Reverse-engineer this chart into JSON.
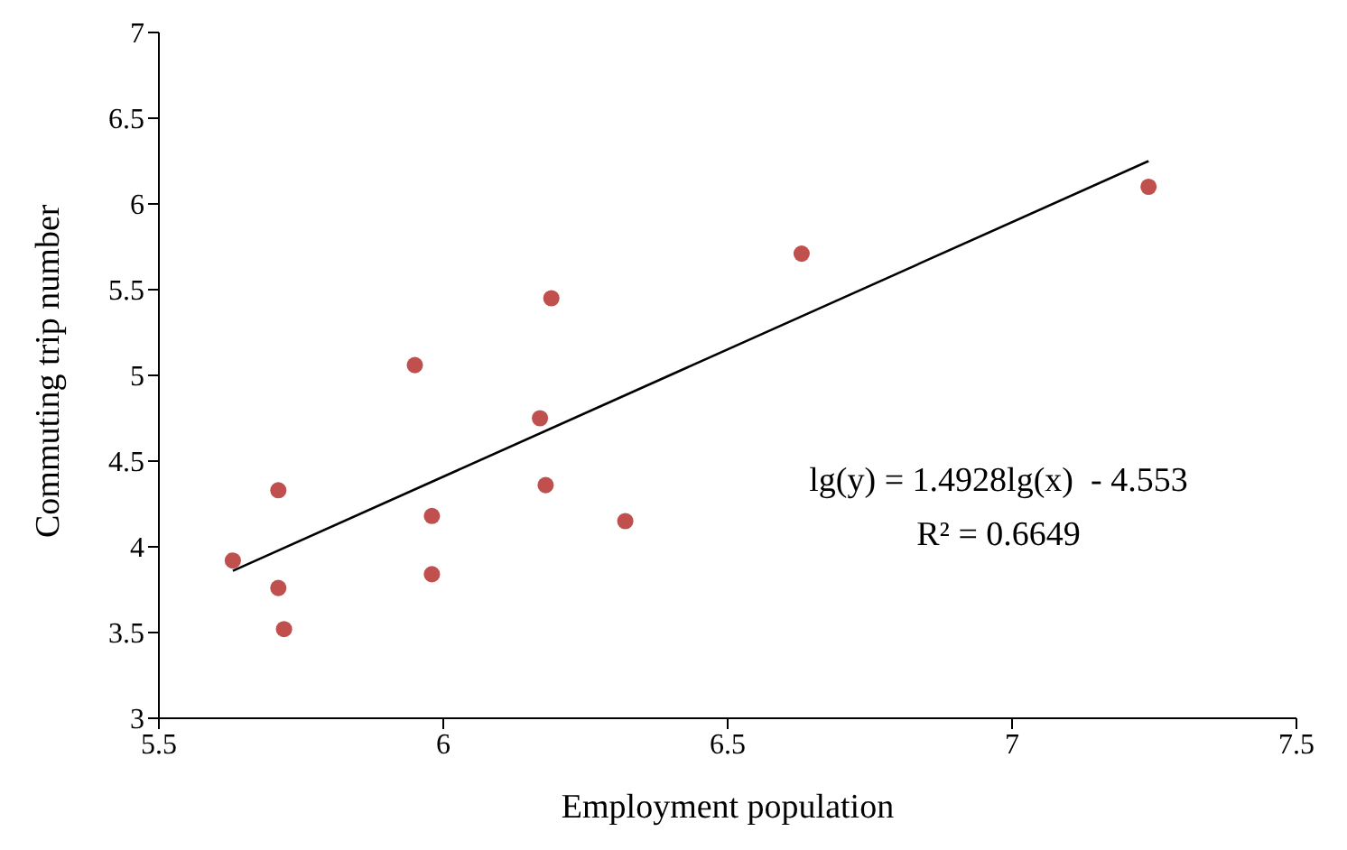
{
  "chart_data": {
    "type": "scatter",
    "xlabel": "Employment population",
    "ylabel": "Commuting  trip number",
    "xlim": [
      5.5,
      7.5
    ],
    "xticks": [
      5.5,
      6,
      6.5,
      7,
      7.5
    ],
    "ylim": [
      3,
      7
    ],
    "yticks": [
      3,
      3.5,
      4,
      4.5,
      5,
      5.5,
      6,
      6.5,
      7
    ],
    "grid": false,
    "series": [
      {
        "marker": "circle",
        "color": "#c0504d",
        "x": [
          5.63,
          5.71,
          5.71,
          5.72,
          5.95,
          5.98,
          5.98,
          6.17,
          6.18,
          6.19,
          6.32,
          6.63,
          7.24
        ],
        "values": [
          3.92,
          4.33,
          3.76,
          3.52,
          5.06,
          4.18,
          3.84,
          4.75,
          4.36,
          5.45,
          4.15,
          5.71,
          6.1
        ]
      },
      {
        "type": "line",
        "color": "#000000",
        "x": [
          5.63,
          7.24
        ],
        "values": [
          3.86,
          6.25
        ]
      }
    ],
    "annotations": [
      "lg(y) = 1.4928lg(x)  - 4.553",
      "R² = 0.6649"
    ]
  }
}
